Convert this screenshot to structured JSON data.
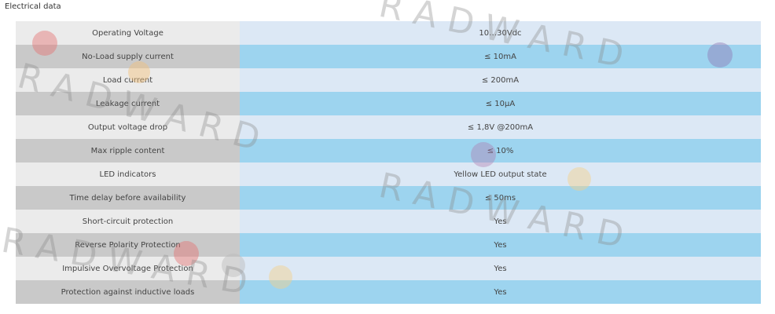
{
  "header": {
    "title": "Electrical data"
  },
  "table": {
    "rows": [
      [
        "Operating Voltage",
        "10…30Vdc"
      ],
      [
        "No-Load supply current",
        "≤ 10mA"
      ],
      [
        "Load current",
        "≤ 200mA"
      ],
      [
        "Leakage current",
        "≤ 10µA"
      ],
      [
        "Output voltage drop",
        "≤ 1,8V @200mA"
      ],
      [
        "Max ripple content",
        "≤ 10%"
      ],
      [
        "LED indicators",
        "Yellow LED output state"
      ],
      [
        "Time delay before availability",
        "≤ 50ms"
      ],
      [
        "Short-circuit protection",
        "Yes"
      ],
      [
        "Reverse Polarity Protection",
        "Yes"
      ],
      [
        "Impulsive Overvoltage Protection",
        "Yes"
      ],
      [
        "Protection against inductive loads",
        "Yes"
      ]
    ]
  },
  "watermark": "R A D W A R D"
}
